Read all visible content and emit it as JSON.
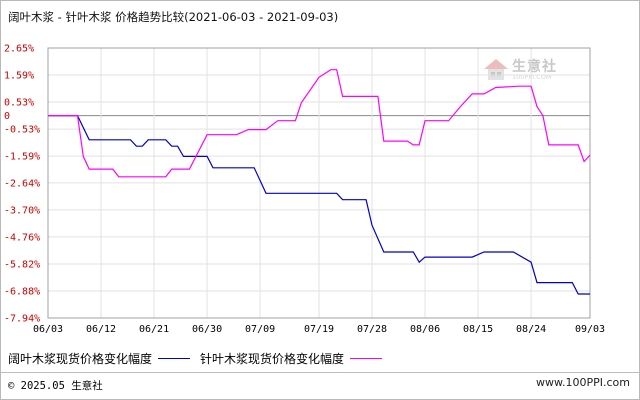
{
  "title": "阔叶木浆 - 针叶木浆 价格趋势比较(2021-06-03 - 2021-09-03)",
  "watermark": {
    "name": "生意社",
    "url": "100PPI.COM",
    "icon": "house-logo-icon"
  },
  "footer": {
    "left": "© 2025.05 生意社",
    "right": "www.100PPI.com"
  },
  "colors": {
    "hardwood": "#0000cc",
    "softwood": "#ff00ff",
    "tick_y": "#cc0000",
    "zero_line": "#888888",
    "grid": "#e2e2e2"
  },
  "chart_data": {
    "type": "line",
    "y_unit": "%",
    "ylim": [
      -7.94,
      2.65
    ],
    "yticks": [
      "2.65%",
      "1.59%",
      "0.53%",
      "0",
      "-0.53%",
      "-1.59%",
      "-2.64%",
      "-3.70%",
      "-4.76%",
      "-5.82%",
      "-6.88%",
      "-7.94%"
    ],
    "ytick_values": [
      2.65,
      1.59,
      0.53,
      0,
      -0.53,
      -1.59,
      -2.64,
      -3.7,
      -4.76,
      -5.82,
      -6.88,
      -7.94
    ],
    "xticks": [
      "06/03",
      "06/12",
      "06/21",
      "06/30",
      "07/09",
      "07/19",
      "07/28",
      "08/06",
      "08/15",
      "08/24",
      "09/03"
    ],
    "grid": true,
    "legend_position": "bottom-left",
    "series": [
      {
        "name": "阔叶木浆现货价格变化幅度",
        "color": "#0000cc",
        "points": [
          [
            "06/03",
            0.0
          ],
          [
            "06/08",
            0.0
          ],
          [
            "06/10",
            -0.95
          ],
          [
            "06/17",
            -0.95
          ],
          [
            "06/18",
            -1.2
          ],
          [
            "06/19",
            -1.2
          ],
          [
            "06/20",
            -0.95
          ],
          [
            "06/23",
            -0.95
          ],
          [
            "06/24",
            -1.2
          ],
          [
            "06/25",
            -1.2
          ],
          [
            "06/26",
            -1.6
          ],
          [
            "06/30",
            -1.6
          ],
          [
            "07/01",
            -2.05
          ],
          [
            "07/08",
            -2.05
          ],
          [
            "07/10",
            -3.05
          ],
          [
            "07/22",
            -3.05
          ],
          [
            "07/23",
            -3.3
          ],
          [
            "07/27",
            -3.3
          ],
          [
            "07/28",
            -4.3
          ],
          [
            "07/30",
            -5.35
          ],
          [
            "08/04",
            -5.35
          ],
          [
            "08/05",
            -5.75
          ],
          [
            "08/06",
            -5.55
          ],
          [
            "08/14",
            -5.55
          ],
          [
            "08/16",
            -5.35
          ],
          [
            "08/21",
            -5.35
          ],
          [
            "08/24",
            -5.75
          ],
          [
            "08/25",
            -6.55
          ],
          [
            "08/31",
            -6.55
          ],
          [
            "09/01",
            -7.0
          ],
          [
            "09/03",
            -7.0
          ]
        ]
      },
      {
        "name": "针叶木浆现货价格变化幅度",
        "color": "#ff00ff",
        "points": [
          [
            "06/03",
            0.0
          ],
          [
            "06/08",
            0.0
          ],
          [
            "06/09",
            -1.6
          ],
          [
            "06/10",
            -2.1
          ],
          [
            "06/14",
            -2.1
          ],
          [
            "06/15",
            -2.4
          ],
          [
            "06/23",
            -2.4
          ],
          [
            "06/24",
            -2.1
          ],
          [
            "06/27",
            -2.1
          ],
          [
            "06/30",
            -0.75
          ],
          [
            "07/05",
            -0.75
          ],
          [
            "07/07",
            -0.55
          ],
          [
            "07/10",
            -0.55
          ],
          [
            "07/12",
            -0.2
          ],
          [
            "07/15",
            -0.2
          ],
          [
            "07/16",
            0.5
          ],
          [
            "07/19",
            1.5
          ],
          [
            "07/21",
            1.8
          ],
          [
            "07/22",
            1.8
          ],
          [
            "07/23",
            0.75
          ],
          [
            "07/26",
            0.75
          ],
          [
            "07/29",
            0.75
          ],
          [
            "07/30",
            -1.0
          ],
          [
            "08/03",
            -1.0
          ],
          [
            "08/04",
            -1.15
          ],
          [
            "08/05",
            -1.15
          ],
          [
            "08/06",
            -0.2
          ],
          [
            "08/10",
            -0.2
          ],
          [
            "08/12",
            0.35
          ],
          [
            "08/14",
            0.85
          ],
          [
            "08/16",
            0.85
          ],
          [
            "08/18",
            1.1
          ],
          [
            "08/22",
            1.15
          ],
          [
            "08/24",
            1.15
          ],
          [
            "08/25",
            0.35
          ],
          [
            "08/26",
            0.0
          ],
          [
            "08/27",
            -1.15
          ],
          [
            "09/01",
            -1.15
          ],
          [
            "09/02",
            -1.8
          ],
          [
            "09/03",
            -1.55
          ]
        ]
      }
    ]
  }
}
